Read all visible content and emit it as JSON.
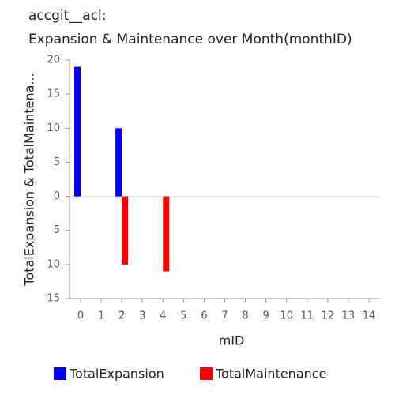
{
  "chart_data": {
    "type": "bar",
    "title": "accgit__acl:",
    "subtitle": "Expansion & Maintenance over Month(monthID)",
    "x_label": "mID",
    "y_label": "TotalExpansion & TotalMaintena...",
    "categories": [
      "0",
      "1",
      "2",
      "3",
      "4",
      "5",
      "6",
      "7",
      "8",
      "9",
      "10",
      "11",
      "12",
      "13",
      "14"
    ],
    "series": [
      {
        "name": "TotalExpansion",
        "color": "#0000ff",
        "values": [
          19,
          null,
          10,
          null,
          null,
          null,
          null,
          null,
          null,
          null,
          null,
          null,
          null,
          null,
          null
        ]
      },
      {
        "name": "TotalMaintenance",
        "color": "#ff0000",
        "values": [
          null,
          null,
          -10,
          null,
          -11,
          null,
          null,
          null,
          null,
          null,
          null,
          null,
          null,
          null,
          null
        ]
      }
    ],
    "ylim": [
      -15,
      20
    ],
    "yticks": [
      {
        "value": -15,
        "label": "15"
      },
      {
        "value": -10,
        "label": "10"
      },
      {
        "value": -5,
        "label": "5"
      },
      0,
      5,
      10,
      15,
      20
    ],
    "legend": "bottom"
  }
}
